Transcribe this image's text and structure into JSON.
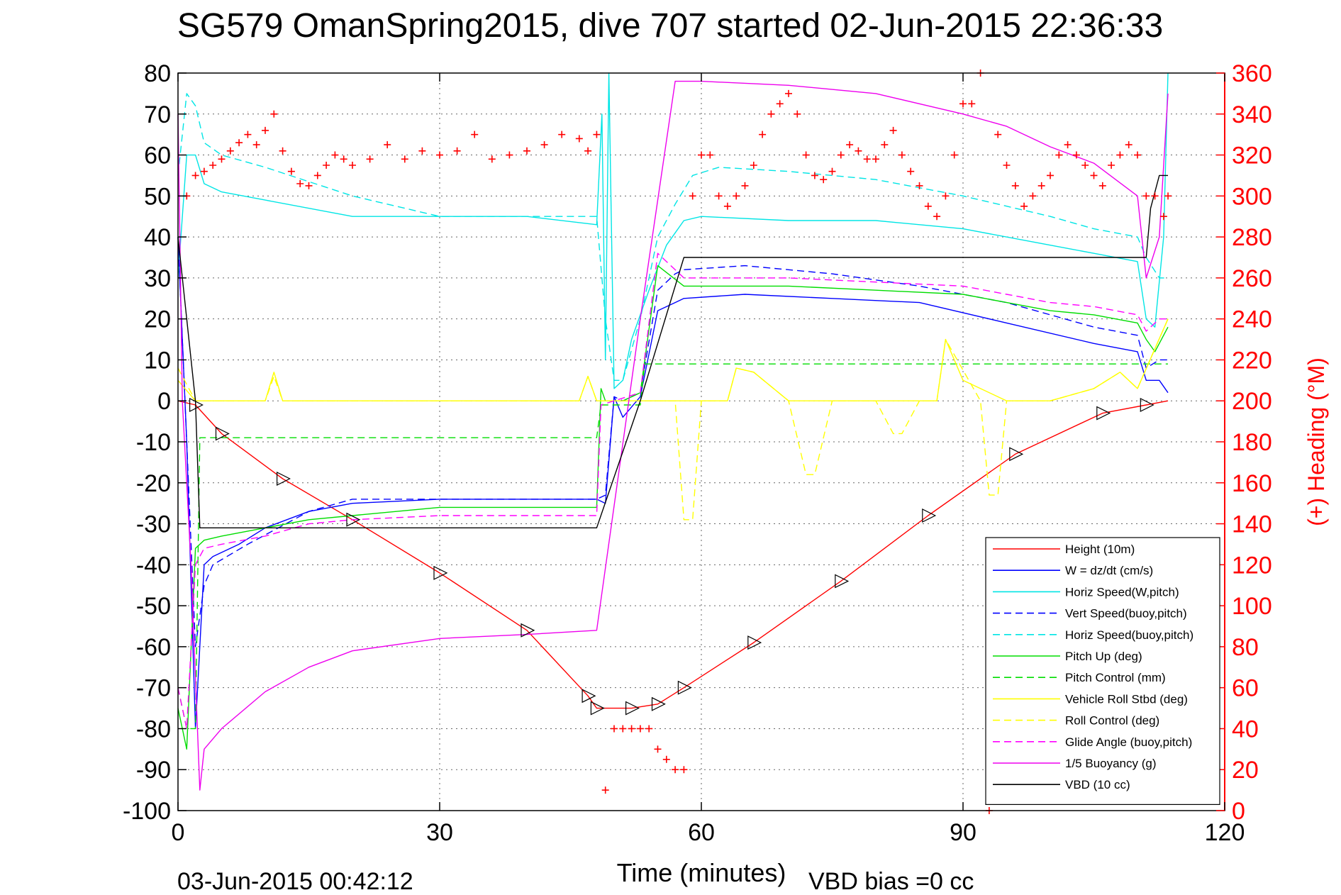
{
  "chart_data": {
    "type": "line",
    "title": "SG579 OmanSpring2015, dive 707 started 02-Jun-2015 22:36:33",
    "xlabel": "Time (minutes)",
    "ylabel_right": "(+) Heading (°M)",
    "footer_left": "03-Jun-2015 00:42:12",
    "footer_right": "VBD bias =0 cc",
    "xlim": [
      0,
      120
    ],
    "ylim": [
      -100,
      80
    ],
    "ylim_right": [
      0,
      360
    ],
    "xticks": [
      0,
      30,
      60,
      90,
      120
    ],
    "yticks": [
      -100,
      -90,
      -80,
      -70,
      -60,
      -50,
      -40,
      -30,
      -20,
      -10,
      0,
      10,
      20,
      30,
      40,
      50,
      60,
      70,
      80
    ],
    "yticks_right": [
      0,
      20,
      40,
      60,
      80,
      100,
      120,
      140,
      160,
      180,
      200,
      220,
      240,
      260,
      280,
      300,
      320,
      340,
      360
    ],
    "grid": true,
    "legend_position": "bottom-right",
    "colors": {
      "height": "#ff0000",
      "w": "#0000ff",
      "horiz_speed": "#00e5e5",
      "pitch": "#00dd00",
      "roll": "#ffff00",
      "glide": "#ff00ff",
      "buoyancy": "#ee00ee",
      "vbd": "#000000",
      "heading": "#ff0000"
    },
    "series": [
      {
        "name": "Height (10m)",
        "color": "#ff0000",
        "style": "solid",
        "x": [
          0,
          2,
          5,
          12,
          20,
          30,
          40,
          47,
          48,
          52,
          55,
          58,
          66,
          76,
          86,
          96,
          106,
          111,
          113.5
        ],
        "y": [
          0,
          -1,
          -8,
          -19,
          -29,
          -42,
          -56,
          -72,
          -75,
          -75,
          -74,
          -70,
          -59,
          -44,
          -28,
          -13,
          -3,
          -1,
          0
        ]
      },
      {
        "name": "W = dz/dt (cm/s)",
        "color": "#0000ff",
        "style": "solid",
        "x": [
          0,
          1,
          2,
          3,
          4,
          7,
          10,
          15,
          20,
          30,
          40,
          48,
          49,
          50,
          51,
          53,
          55,
          57,
          58,
          65,
          75,
          85,
          95,
          105,
          110,
          111,
          112.5,
          113.5
        ],
        "y": [
          40,
          -10,
          -80,
          -40,
          -38,
          -35,
          -31,
          -27,
          -25,
          -24,
          -24,
          -24,
          -25,
          1,
          -4,
          1,
          22,
          24,
          25,
          26,
          25,
          24,
          19,
          14,
          12,
          5,
          5,
          2
        ]
      },
      {
        "name": "Horiz Speed(W,pitch)",
        "color": "#00e5e5",
        "style": "solid",
        "x": [
          0,
          1,
          2,
          3,
          5,
          10,
          20,
          30,
          40,
          48,
          48.6,
          49,
          49.4,
          50,
          51,
          52,
          54,
          56,
          58,
          60,
          70,
          80,
          90,
          100,
          105,
          110,
          111,
          112,
          113,
          113.5
        ],
        "y": [
          30,
          60,
          60,
          53,
          51,
          49,
          45,
          45,
          45,
          43,
          70,
          10,
          80,
          3,
          5,
          15,
          27,
          38,
          44,
          45,
          44,
          44,
          42,
          38,
          36,
          34,
          20,
          18,
          40,
          80
        ]
      },
      {
        "name": "Vert Speed(buoy,pitch)",
        "color": "#0000ff",
        "style": "dashed",
        "x": [
          0,
          1,
          2,
          3,
          4,
          8,
          15,
          20,
          30,
          40,
          48,
          49,
          50,
          51,
          53,
          55,
          57,
          58,
          65,
          75,
          85,
          95,
          105,
          110,
          111,
          112.5,
          113.5
        ],
        "y": [
          40,
          -10,
          -60,
          -45,
          -40,
          -35,
          -27,
          -24,
          -24,
          -24,
          -24,
          -23,
          1,
          0,
          2,
          27,
          31,
          32,
          33,
          31,
          28,
          24,
          18,
          16,
          8,
          10,
          10
        ]
      },
      {
        "name": "Horiz Speed(buoy,pitch)",
        "color": "#00e5e5",
        "style": "dashed",
        "x": [
          0,
          1,
          2,
          3,
          5,
          10,
          20,
          30,
          40,
          48,
          49,
          50,
          51,
          53,
          55,
          57,
          59,
          62,
          70,
          80,
          90,
          100,
          105,
          110,
          111,
          112.5,
          113.5
        ],
        "y": [
          55,
          75,
          72,
          63,
          60,
          57,
          50,
          45,
          45,
          45,
          20,
          5,
          5,
          20,
          40,
          48,
          55,
          57,
          56,
          54,
          50,
          45,
          42,
          40,
          35,
          30,
          30
        ]
      },
      {
        "name": "Pitch Up (deg)",
        "color": "#00dd00",
        "style": "solid",
        "x": [
          0,
          1,
          2,
          3,
          5,
          10,
          15,
          20,
          30,
          40,
          48,
          48.5,
          49,
          51,
          53,
          55,
          58,
          60,
          70,
          80,
          90,
          95,
          100,
          105,
          110,
          111,
          112,
          113.5
        ],
        "y": [
          -75,
          -85,
          -36,
          -34,
          -33,
          -31,
          -29,
          -28,
          -26,
          -26,
          -26,
          3,
          0,
          0,
          2,
          33,
          28,
          28,
          28,
          27,
          26,
          24,
          22,
          21,
          19,
          15,
          12,
          18
        ]
      },
      {
        "name": "Pitch Control (mm)",
        "color": "#00dd00",
        "style": "dashed",
        "x": [
          0,
          1,
          2,
          2.5,
          48,
          48.5,
          53,
          53.5,
          113.5
        ],
        "y": [
          -70,
          -80,
          -80,
          -9,
          -9,
          -1,
          -1,
          9,
          9
        ]
      },
      {
        "name": "Vehicle Roll Stbd (deg)",
        "color": "#ffff00",
        "style": "solid",
        "x": [
          0,
          2,
          5,
          10,
          11,
          12,
          20,
          30,
          40,
          46,
          47,
          48,
          50,
          55,
          60,
          63,
          64,
          66,
          70,
          75,
          80,
          85,
          87,
          88,
          90,
          95,
          100,
          105,
          108,
          110,
          113.5
        ],
        "y": [
          5,
          0,
          0,
          0,
          7,
          0,
          0,
          0,
          0,
          0,
          6,
          0,
          0,
          0,
          0,
          0,
          8,
          7,
          0,
          0,
          0,
          0,
          0,
          15,
          5,
          0,
          0,
          3,
          7,
          3,
          20
        ]
      },
      {
        "name": "Roll Control (deg)",
        "color": "#ffff00",
        "style": "dashed",
        "x": [
          0,
          2,
          5,
          10,
          11,
          12,
          20,
          30,
          40,
          46,
          47,
          48,
          55,
          57,
          58,
          59,
          60,
          63,
          64,
          66,
          70,
          72,
          73,
          75,
          80,
          82,
          83,
          85,
          87,
          88,
          92,
          93,
          94,
          95,
          100,
          105,
          108,
          110,
          113.5
        ],
        "y": [
          8,
          0,
          0,
          0,
          6,
          0,
          0,
          0,
          0,
          0,
          6,
          0,
          0,
          0,
          -29,
          -29,
          0,
          0,
          8,
          7,
          0,
          -18,
          -18,
          0,
          0,
          -8,
          -8,
          0,
          0,
          15,
          0,
          -23,
          -23,
          0,
          0,
          3,
          7,
          3,
          20
        ]
      },
      {
        "name": "Glide Angle (buoy,pitch)",
        "color": "#ff00ff",
        "style": "dashed",
        "x": [
          0,
          1,
          2,
          3,
          5,
          10,
          15,
          20,
          30,
          40,
          48,
          48.5,
          50,
          53,
          55,
          58,
          60,
          70,
          80,
          90,
          95,
          100,
          105,
          110,
          111,
          112.5,
          113.5
        ],
        "y": [
          -70,
          -80,
          -40,
          -36,
          -35,
          -33,
          -30,
          -29,
          -28,
          -28,
          -28,
          -1,
          0,
          2,
          36,
          30,
          30,
          30,
          29,
          28,
          26,
          24,
          23,
          21,
          17,
          20,
          20
        ]
      },
      {
        "name": "1/5 Buoyancy (g)",
        "color": "#ee00ee",
        "style": "solid",
        "x": [
          0,
          0.5,
          1.5,
          2.5,
          3,
          5,
          10,
          15,
          20,
          30,
          40,
          48,
          53,
          57,
          58,
          60,
          70,
          80,
          90,
          95,
          100,
          105,
          110,
          111,
          112.5,
          113.5
        ],
        "y": [
          70,
          0,
          -40,
          -95,
          -85,
          -80,
          -71,
          -65,
          -61,
          -58,
          -57,
          -56,
          20,
          78,
          78,
          78,
          77,
          75,
          70,
          67,
          62,
          58,
          50,
          30,
          40,
          75
        ]
      },
      {
        "name": "VBD (10 cc)",
        "color": "#000000",
        "style": "solid",
        "x": [
          0,
          2,
          2.5,
          48,
          53,
          58,
          60,
          100,
          111,
          111.5,
          112.5,
          113.5
        ],
        "y": [
          40,
          0,
          -31,
          -31,
          0,
          35,
          35,
          35,
          35,
          47,
          55,
          55
        ]
      }
    ],
    "heading": {
      "name": "(+) Heading (°M)",
      "color": "#ff0000",
      "marker": "+",
      "x": [
        1,
        2,
        3,
        4,
        5,
        6,
        7,
        8,
        9,
        10,
        11,
        12,
        13,
        14,
        15,
        16,
        17,
        18,
        19,
        20,
        22,
        24,
        26,
        28,
        30,
        32,
        34,
        36,
        38,
        40,
        42,
        44,
        46,
        47,
        48,
        49,
        50,
        51,
        52,
        53,
        54,
        55,
        56,
        57,
        58,
        59,
        60,
        61,
        62,
        63,
        64,
        65,
        66,
        67,
        68,
        69,
        70,
        71,
        72,
        73,
        74,
        75,
        76,
        77,
        78,
        79,
        80,
        81,
        82,
        83,
        84,
        85,
        86,
        87,
        88,
        89,
        90,
        91,
        92,
        93,
        94,
        95,
        96,
        97,
        98,
        99,
        100,
        101,
        102,
        103,
        104,
        105,
        106,
        107,
        108,
        109,
        110,
        111,
        112,
        113,
        113.5
      ],
      "y": [
        300,
        310,
        312,
        315,
        318,
        322,
        326,
        330,
        325,
        332,
        340,
        322,
        312,
        306,
        305,
        310,
        315,
        320,
        318,
        315,
        318,
        325,
        318,
        322,
        320,
        322,
        330,
        318,
        320,
        322,
        325,
        330,
        328,
        322,
        330,
        10,
        40,
        40,
        40,
        40,
        40,
        30,
        25,
        20,
        20,
        300,
        320,
        320,
        300,
        295,
        300,
        305,
        315,
        330,
        340,
        345,
        350,
        340,
        320,
        310,
        308,
        312,
        320,
        325,
        322,
        318,
        318,
        325,
        332,
        320,
        312,
        305,
        295,
        290,
        300,
        320,
        345,
        345,
        360,
        0,
        330,
        315,
        305,
        295,
        300,
        305,
        310,
        320,
        325,
        320,
        315,
        310,
        305,
        315,
        320,
        325,
        320,
        300,
        300,
        290,
        300
      ]
    }
  }
}
